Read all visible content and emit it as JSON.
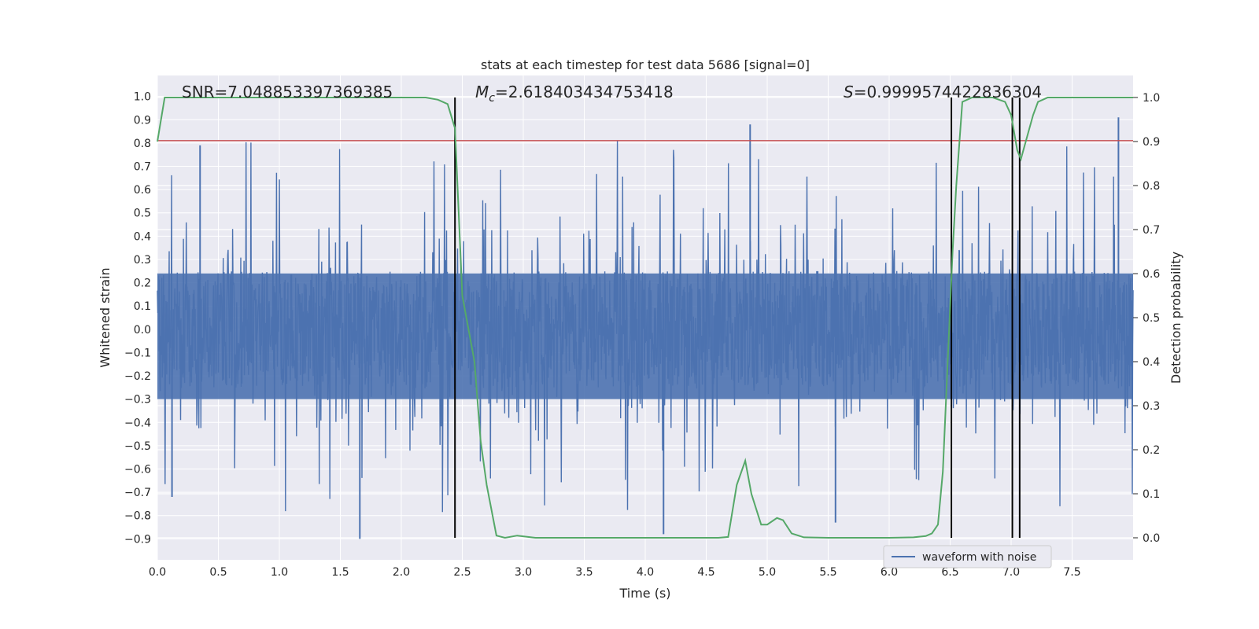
{
  "chart_data": {
    "type": "line",
    "title": "stats at each timestep for test data 5686 [signal=0]",
    "xlabel": "Time (s)",
    "ylabel": "Whitened strain",
    "y2label": "Detection probability",
    "xlim": [
      0.0,
      8.0
    ],
    "ylim": [
      -0.99,
      1.09
    ],
    "y2lim": [
      -0.05,
      1.05
    ],
    "x_ticks": [
      "0.0",
      "0.5",
      "1.0",
      "1.5",
      "2.0",
      "2.5",
      "3.0",
      "3.5",
      "4.0",
      "4.5",
      "5.0",
      "5.5",
      "6.0",
      "6.5",
      "7.0",
      "7.5"
    ],
    "y_ticks": [
      "−0.9",
      "−0.8",
      "−0.7",
      "−0.6",
      "−0.5",
      "−0.4",
      "−0.3",
      "−0.2",
      "−0.1",
      "0.0",
      "0.1",
      "0.2",
      "0.3",
      "0.4",
      "0.5",
      "0.6",
      "0.7",
      "0.8",
      "0.9",
      "1.0"
    ],
    "y2_ticks": [
      "0.0",
      "0.1",
      "0.2",
      "0.3",
      "0.4",
      "0.5",
      "0.6",
      "0.7",
      "0.8",
      "0.9",
      "1.0"
    ],
    "grid": true,
    "legend_position": "lower-right",
    "annotations": {
      "snr": "SNR=7.048853397369385",
      "mc_symbol": "M",
      "mc_sub": "c",
      "mc_value": "=2.618403434753418",
      "s_symbol": "S",
      "s_value": "=0.9999574422836304"
    },
    "series": [
      {
        "name": "waveform with noise",
        "axis": "left",
        "color": "#4c72b0",
        "kind": "noise-waveform",
        "noise_envelope": {
          "typical_upper": 0.42,
          "typical_lower": -0.34,
          "peak_max": 0.91,
          "peak_min": -0.9
        }
      },
      {
        "axis": "right",
        "color": "#55a868",
        "x": [
          0.0,
          0.06,
          0.3,
          0.6,
          1.0,
          1.5,
          2.0,
          2.2,
          2.3,
          2.38,
          2.44,
          2.5,
          2.6,
          2.65,
          2.7,
          2.78,
          2.85,
          2.95,
          3.1,
          3.3,
          3.5,
          3.8,
          4.2,
          4.6,
          4.68,
          4.75,
          4.82,
          4.87,
          4.95,
          5.0,
          5.08,
          5.13,
          5.2,
          5.3,
          5.5,
          5.8,
          6.0,
          6.2,
          6.3,
          6.35,
          6.4,
          6.44,
          6.48,
          6.52,
          6.55,
          6.6,
          6.68,
          6.75,
          6.85,
          6.95,
          7.0,
          7.05,
          7.08,
          7.12,
          7.18,
          7.22,
          7.3,
          7.4,
          7.6,
          7.8,
          8.0
        ],
        "y": [
          0.9,
          1.0,
          1.0,
          1.0,
          1.0,
          1.0,
          1.0,
          1.0,
          0.995,
          0.985,
          0.93,
          0.55,
          0.4,
          0.22,
          0.12,
          0.005,
          0.0,
          0.005,
          0.0,
          0.0,
          0.0,
          0.0,
          0.0,
          0.0,
          0.002,
          0.12,
          0.175,
          0.1,
          0.03,
          0.03,
          0.045,
          0.04,
          0.01,
          0.001,
          0.0,
          0.0,
          0.0,
          0.001,
          0.004,
          0.01,
          0.03,
          0.15,
          0.4,
          0.65,
          0.8,
          0.99,
          1.0,
          1.0,
          1.0,
          0.99,
          0.96,
          0.88,
          0.86,
          0.9,
          0.96,
          0.99,
          1.0,
          1.0,
          1.0,
          1.0,
          1.0
        ]
      }
    ],
    "horizontal_lines": [
      {
        "axis": "left",
        "y": 0.81,
        "color": "#c44e52"
      }
    ],
    "vertical_lines": [
      {
        "x": 2.44
      },
      {
        "x": 6.51
      },
      {
        "x": 7.01
      },
      {
        "x": 7.07
      }
    ]
  }
}
